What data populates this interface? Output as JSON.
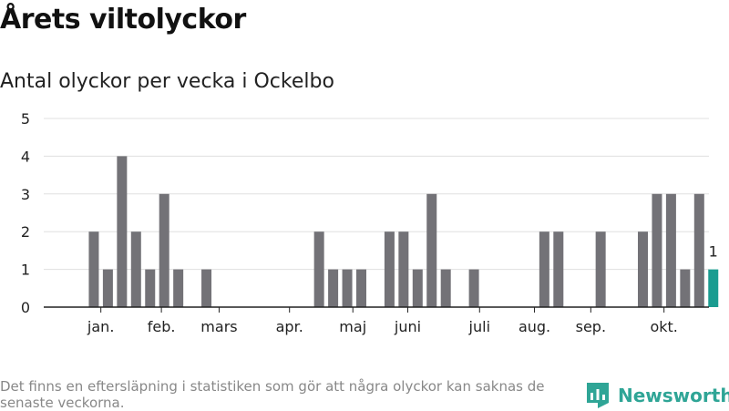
{
  "header": {
    "title": "Årets viltolyckor",
    "subtitle": "Antal olyckor per vecka i Ockelbo"
  },
  "footer": {
    "note": "Det finns en eftersläpning i statistiken som gör att några olyckor kan saknas de senaste veckorna.",
    "brand": "Newsworthy",
    "brand_icon": "newsworthy-logo-icon"
  },
  "colors": {
    "bar": "#737277",
    "highlight": "#1a9c90",
    "grid": "#e0e0e0",
    "axis": "#222222",
    "brand": "#2fa596"
  },
  "chart_data": {
    "type": "bar",
    "title": "",
    "xlabel": "",
    "ylabel": "",
    "ylim": [
      0,
      5
    ],
    "yticks": [
      0,
      1,
      2,
      3,
      4,
      5
    ],
    "grid": true,
    "x": [
      1,
      2,
      3,
      4,
      5,
      6,
      7,
      8,
      9,
      10,
      11,
      12,
      13,
      14,
      15,
      16,
      17,
      18,
      19,
      20,
      21,
      22,
      23,
      24,
      25,
      26,
      27,
      28,
      29,
      30,
      31,
      32,
      33,
      34,
      35,
      36,
      37,
      38,
      39,
      40,
      41,
      42,
      43,
      44,
      45
    ],
    "values": [
      0,
      2,
      1,
      4,
      2,
      1,
      3,
      1,
      0,
      1,
      0,
      0,
      0,
      0,
      0,
      0,
      0,
      2,
      1,
      1,
      1,
      0,
      2,
      2,
      1,
      3,
      1,
      0,
      1,
      0,
      0,
      0,
      0,
      2,
      2,
      0,
      0,
      2,
      0,
      0,
      2,
      3,
      3,
      1,
      3
    ],
    "highlight": {
      "x": 46,
      "value": 1,
      "label": "1"
    },
    "month_labels": [
      {
        "label": "jan.",
        "x": 2.5
      },
      {
        "label": "feb.",
        "x": 6.8
      },
      {
        "label": "mars",
        "x": 10.9
      },
      {
        "label": "apr.",
        "x": 15.9
      },
      {
        "label": "maj",
        "x": 20.4
      },
      {
        "label": "juni",
        "x": 24.3
      },
      {
        "label": "juli",
        "x": 29.4
      },
      {
        "label": "aug.",
        "x": 33.3
      },
      {
        "label": "sep.",
        "x": 37.3
      },
      {
        "label": "okt.",
        "x": 42.5
      }
    ]
  }
}
